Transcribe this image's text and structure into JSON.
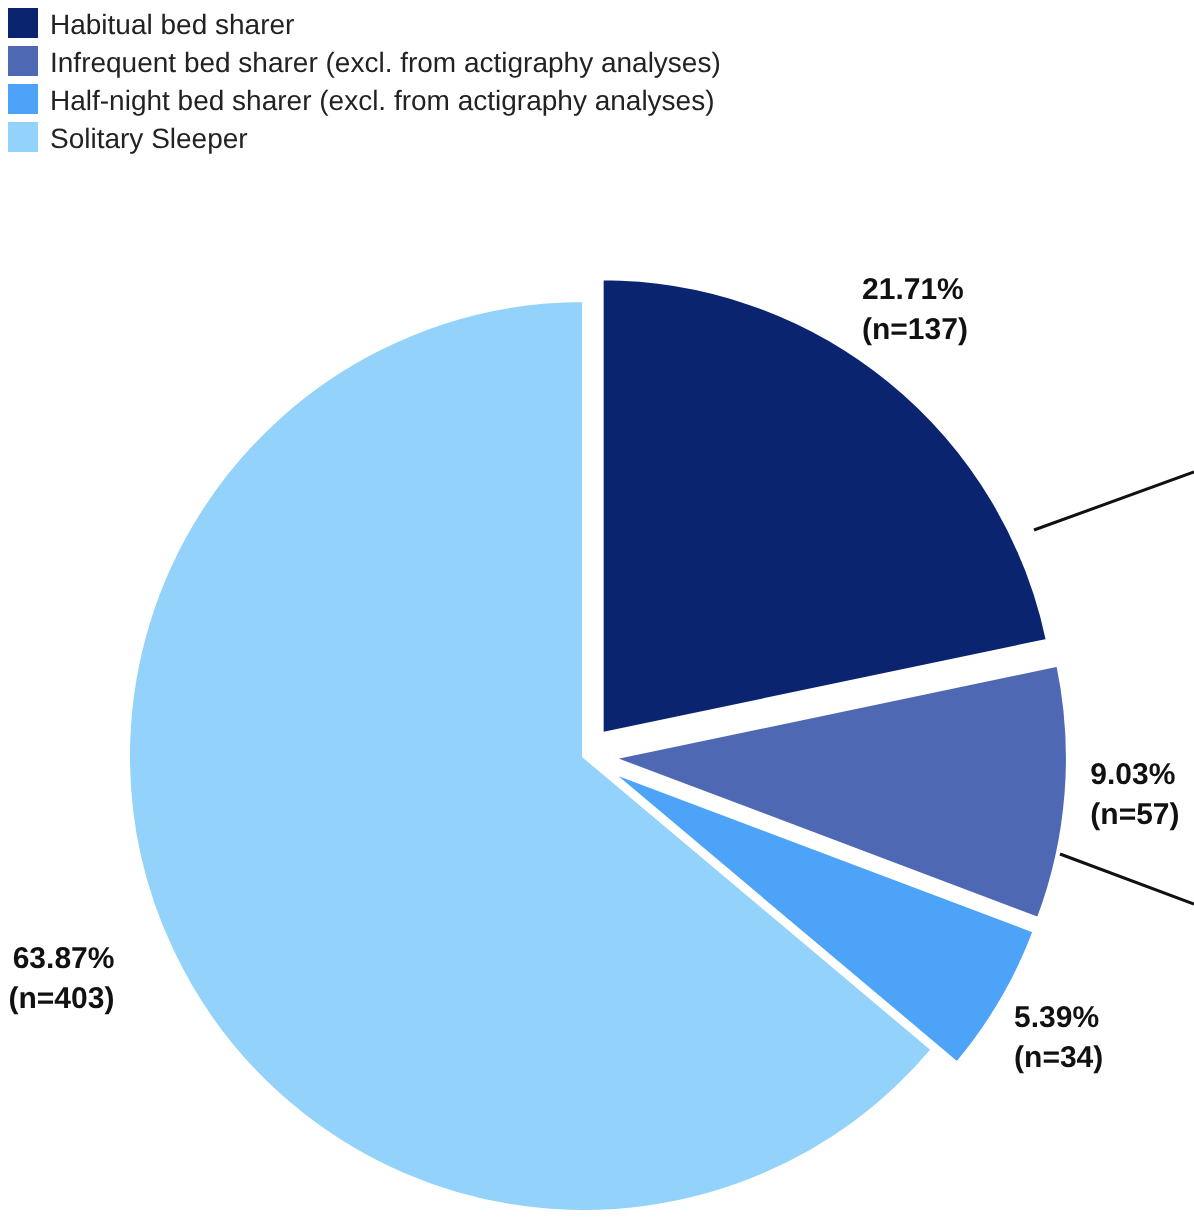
{
  "chart_data": {
    "type": "pie",
    "categories": [
      "Habitual bed sharer",
      "Infrequent bed sharer (excl. from actigraphy analyses)",
      "Half-night bed sharer (excl. from actigraphy analyses)",
      "Solitary Sleeper"
    ],
    "values": [
      21.71,
      9.03,
      5.39,
      63.87
    ],
    "colors": [
      "#0b2470",
      "#4e68b3",
      "#4da3f7",
      "#93d3fb"
    ],
    "value_labels": [
      "21.71%\n(n=137)",
      "9.03%\n(n=57)",
      "5.39%\n(n=34)",
      "63.87%\n(n=403)"
    ],
    "legend": "top left"
  }
}
